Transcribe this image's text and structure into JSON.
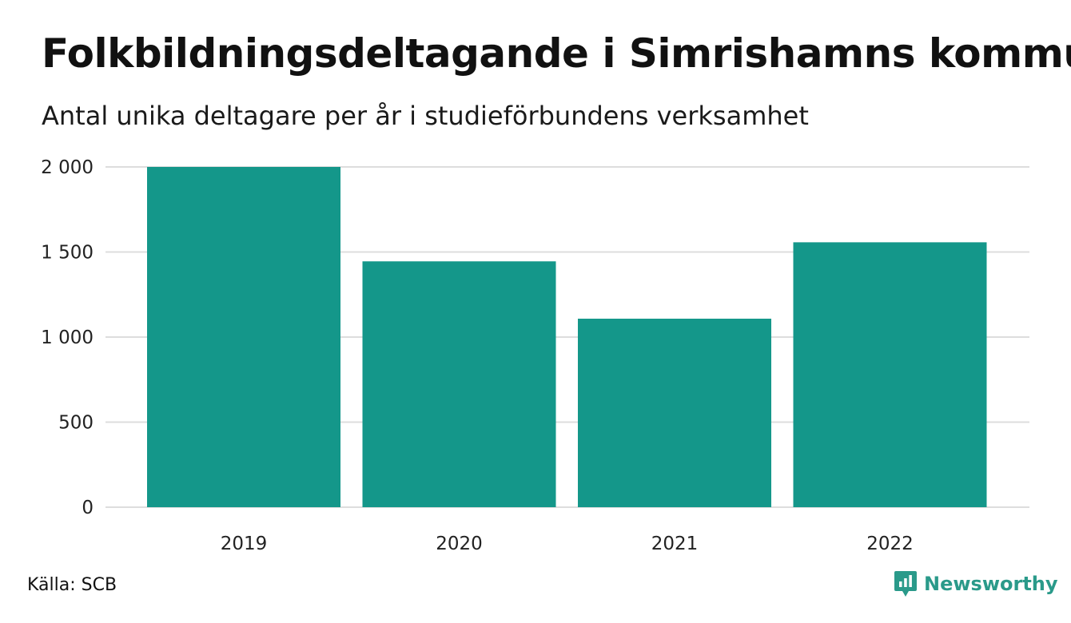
{
  "chart_data": {
    "type": "bar",
    "title": "Folkbildningsdeltagande i Simrishamns kommun",
    "subtitle": "Antal unika deltagare per år i studieförbundens verksamhet",
    "categories": [
      "2019",
      "2020",
      "2021",
      "2022"
    ],
    "values": [
      2000,
      1445,
      1108,
      1557
    ],
    "ylim": [
      0,
      2000
    ],
    "yticks": [
      0,
      500,
      1000,
      1500,
      2000
    ],
    "ytick_labels": [
      "0",
      "500",
      "1 000",
      "1 500",
      "2 000"
    ],
    "xlabel": "",
    "ylabel": "",
    "grid": true,
    "bar_color": "#14978a",
    "grid_color": "#dddddd"
  },
  "footer": {
    "source": "Källa: SCB",
    "brand": "Newsworthy",
    "brand_color": "#2a9a8a",
    "brand_icon": "newsworthy-logo-icon"
  }
}
